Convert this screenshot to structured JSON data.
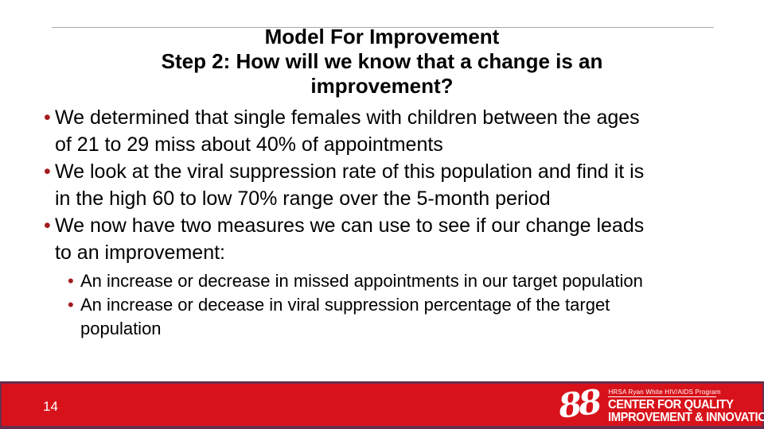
{
  "slide": {
    "title": {
      "line1": "Model For Improvement",
      "line2": "Step 2: How will we know that a change is an",
      "line3": "improvement?"
    },
    "bullet_glyph": "•",
    "bullets": [
      {
        "lines": [
          "We determined that single females with children between the ages",
          "of 21 to 29 miss about 40% of appointments"
        ]
      },
      {
        "lines": [
          "We look at the viral suppression rate of this population and find it is",
          "in the high 60 to low 70% range over the 5-month period"
        ]
      },
      {
        "lines": [
          "We now have two measures we can use to see if our change leads",
          "to an improvement:"
        ]
      }
    ],
    "sub_bullets": [
      {
        "lines": [
          "An increase or decrease in missed appointments in our target population"
        ]
      },
      {
        "lines": [
          "An increase or decease in viral suppression percentage of the target",
          "population"
        ]
      }
    ],
    "footer": {
      "page_number": "14",
      "logo": {
        "ribbon_glyph": "88",
        "program": "HRSA Ryan White HIV/AIDS Program",
        "org_line1": "CENTER FOR QUALITY",
        "org_line2": "IMPROVEMENT & INNOVATION"
      }
    },
    "colors": {
      "band_red": "#d8121a",
      "band_border": "#682e4d",
      "bullet_red": "#a21c1f",
      "divider_gray": "#a9a9a9",
      "text_black": "#000000",
      "logo_white": "#ffffff"
    }
  }
}
